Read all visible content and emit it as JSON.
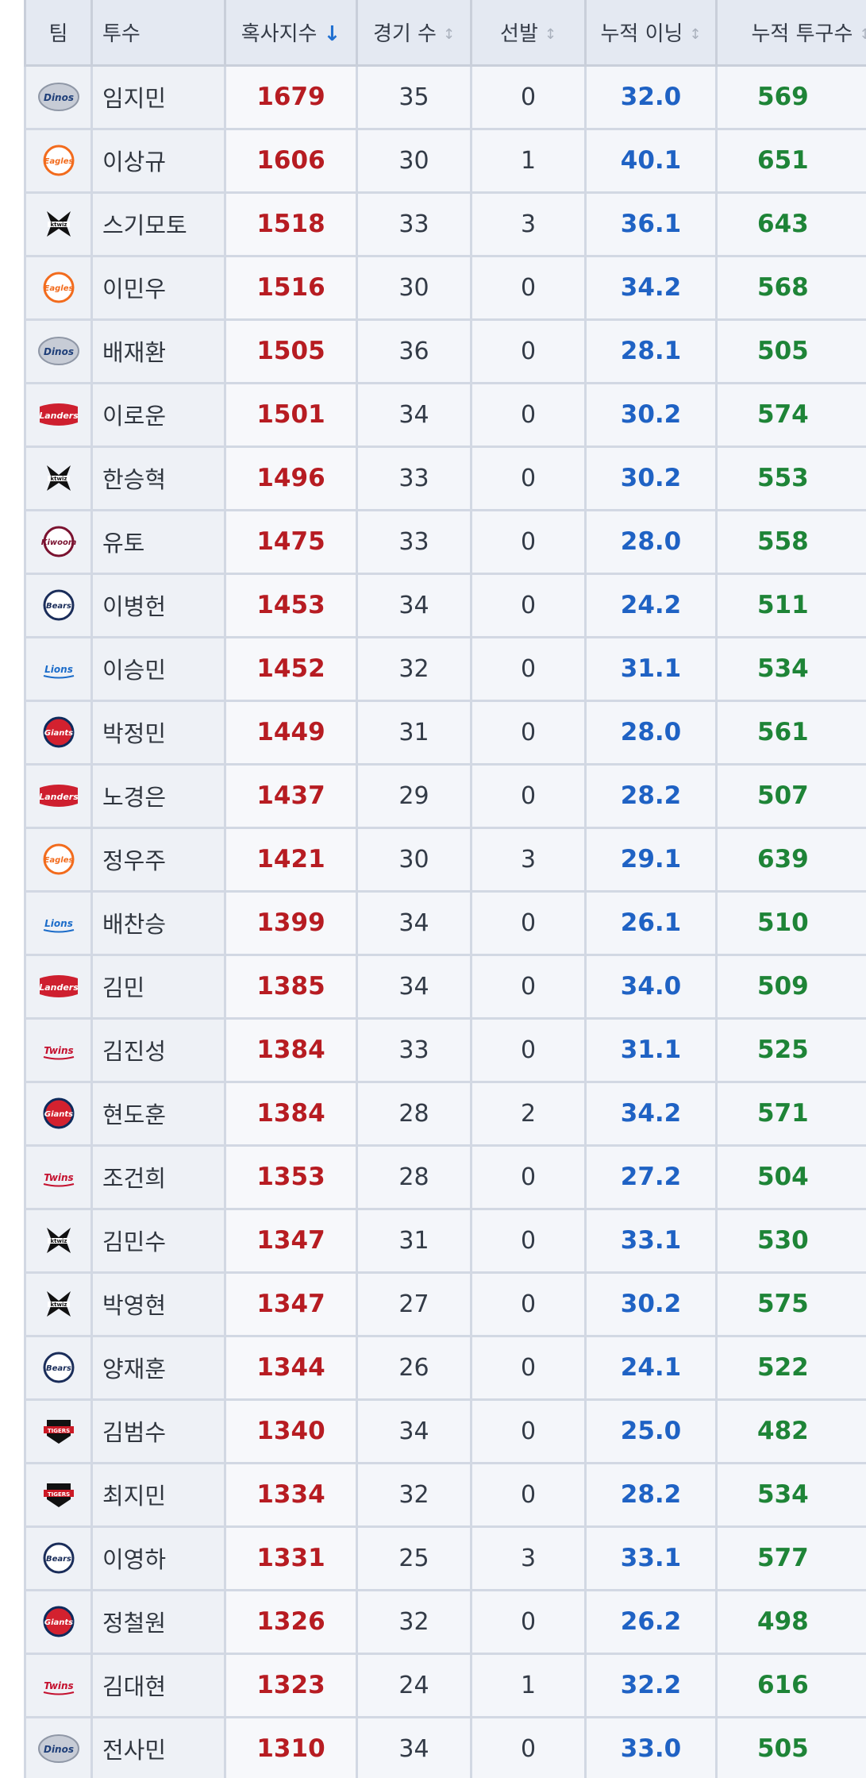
{
  "table": {
    "headers": {
      "team": "팀",
      "pitcher": "투수",
      "score": "혹사지수",
      "games": "경기 수",
      "starts": "선발",
      "innings": "누적 이닝",
      "pitches": "누적 투구수"
    },
    "sort_indicator_active": "↓",
    "sort_indicator_inactive": "↕",
    "rows": [
      {
        "team": "dinos",
        "name": "임지민",
        "score": "1679",
        "games": "35",
        "starts": "0",
        "innings": "32.0",
        "pitches": "569"
      },
      {
        "team": "eagles",
        "name": "이상규",
        "score": "1606",
        "games": "30",
        "starts": "1",
        "innings": "40.1",
        "pitches": "651"
      },
      {
        "team": "ktwiz",
        "name": "스기모토",
        "score": "1518",
        "games": "33",
        "starts": "3",
        "innings": "36.1",
        "pitches": "643"
      },
      {
        "team": "eagles",
        "name": "이민우",
        "score": "1516",
        "games": "30",
        "starts": "0",
        "innings": "34.2",
        "pitches": "568"
      },
      {
        "team": "dinos",
        "name": "배재환",
        "score": "1505",
        "games": "36",
        "starts": "0",
        "innings": "28.1",
        "pitches": "505"
      },
      {
        "team": "landers",
        "name": "이로운",
        "score": "1501",
        "games": "34",
        "starts": "0",
        "innings": "30.2",
        "pitches": "574"
      },
      {
        "team": "ktwiz",
        "name": "한승혁",
        "score": "1496",
        "games": "33",
        "starts": "0",
        "innings": "30.2",
        "pitches": "553"
      },
      {
        "team": "kiwoom",
        "name": "유토",
        "score": "1475",
        "games": "33",
        "starts": "0",
        "innings": "28.0",
        "pitches": "558"
      },
      {
        "team": "bears",
        "name": "이병헌",
        "score": "1453",
        "games": "34",
        "starts": "0",
        "innings": "24.2",
        "pitches": "511"
      },
      {
        "team": "lions",
        "name": "이승민",
        "score": "1452",
        "games": "32",
        "starts": "0",
        "innings": "31.1",
        "pitches": "534"
      },
      {
        "team": "giants",
        "name": "박정민",
        "score": "1449",
        "games": "31",
        "starts": "0",
        "innings": "28.0",
        "pitches": "561"
      },
      {
        "team": "landers",
        "name": "노경은",
        "score": "1437",
        "games": "29",
        "starts": "0",
        "innings": "28.2",
        "pitches": "507"
      },
      {
        "team": "eagles",
        "name": "정우주",
        "score": "1421",
        "games": "30",
        "starts": "3",
        "innings": "29.1",
        "pitches": "639"
      },
      {
        "team": "lions",
        "name": "배찬승",
        "score": "1399",
        "games": "34",
        "starts": "0",
        "innings": "26.1",
        "pitches": "510"
      },
      {
        "team": "landers",
        "name": "김민",
        "score": "1385",
        "games": "34",
        "starts": "0",
        "innings": "34.0",
        "pitches": "509"
      },
      {
        "team": "twins",
        "name": "김진성",
        "score": "1384",
        "games": "33",
        "starts": "0",
        "innings": "31.1",
        "pitches": "525"
      },
      {
        "team": "giants",
        "name": "현도훈",
        "score": "1384",
        "games": "28",
        "starts": "2",
        "innings": "34.2",
        "pitches": "571"
      },
      {
        "team": "twins",
        "name": "조건희",
        "score": "1353",
        "games": "28",
        "starts": "0",
        "innings": "27.2",
        "pitches": "504"
      },
      {
        "team": "ktwiz",
        "name": "김민수",
        "score": "1347",
        "games": "31",
        "starts": "0",
        "innings": "33.1",
        "pitches": "530"
      },
      {
        "team": "ktwiz",
        "name": "박영현",
        "score": "1347",
        "games": "27",
        "starts": "0",
        "innings": "30.2",
        "pitches": "575"
      },
      {
        "team": "bears",
        "name": "양재훈",
        "score": "1344",
        "games": "26",
        "starts": "0",
        "innings": "24.1",
        "pitches": "522"
      },
      {
        "team": "tigers",
        "name": "김범수",
        "score": "1340",
        "games": "34",
        "starts": "0",
        "innings": "25.0",
        "pitches": "482"
      },
      {
        "team": "tigers",
        "name": "최지민",
        "score": "1334",
        "games": "32",
        "starts": "0",
        "innings": "28.2",
        "pitches": "534"
      },
      {
        "team": "bears",
        "name": "이영하",
        "score": "1331",
        "games": "25",
        "starts": "3",
        "innings": "33.1",
        "pitches": "577"
      },
      {
        "team": "giants",
        "name": "정철원",
        "score": "1326",
        "games": "32",
        "starts": "0",
        "innings": "26.2",
        "pitches": "498"
      },
      {
        "team": "twins",
        "name": "김대현",
        "score": "1323",
        "games": "24",
        "starts": "1",
        "innings": "32.2",
        "pitches": "616"
      },
      {
        "team": "dinos",
        "name": "전사민",
        "score": "1310",
        "games": "34",
        "starts": "0",
        "innings": "33.0",
        "pitches": "505"
      }
    ]
  },
  "team_logos": {
    "dinos": {
      "text": "Dinos",
      "color": "#1f3f79",
      "bg": "#c7ccd6",
      "shape": "oval"
    },
    "eagles": {
      "text": "Eagles",
      "color": "#f26b1d",
      "bg": "#ffffff",
      "shape": "circle"
    },
    "ktwiz": {
      "text": "ktwiz",
      "color": "#111111",
      "bg": "#ffffff",
      "shape": "wiz"
    },
    "landers": {
      "text": "Landers",
      "color": "#ce1f2f",
      "bg": "#ffffff",
      "shape": "banner"
    },
    "kiwoom": {
      "text": "Kiwoom",
      "color": "#7a1230",
      "bg": "#ffffff",
      "shape": "circle"
    },
    "bears": {
      "text": "Bears",
      "color": "#1a2d5a",
      "bg": "#ffffff",
      "shape": "circle"
    },
    "lions": {
      "text": "Lions",
      "color": "#1b6cc9",
      "bg": "#ffffff",
      "shape": "word"
    },
    "giants": {
      "text": "Giants",
      "color": "#0d2a5c",
      "bg": "#d3212f",
      "shape": "circle"
    },
    "twins": {
      "text": "Twins",
      "color": "#c4102e",
      "bg": "#ffffff",
      "shape": "word"
    },
    "tigers": {
      "text": "Tigers",
      "color": "#cc1a26",
      "bg": "#111111",
      "shape": "shield"
    }
  }
}
